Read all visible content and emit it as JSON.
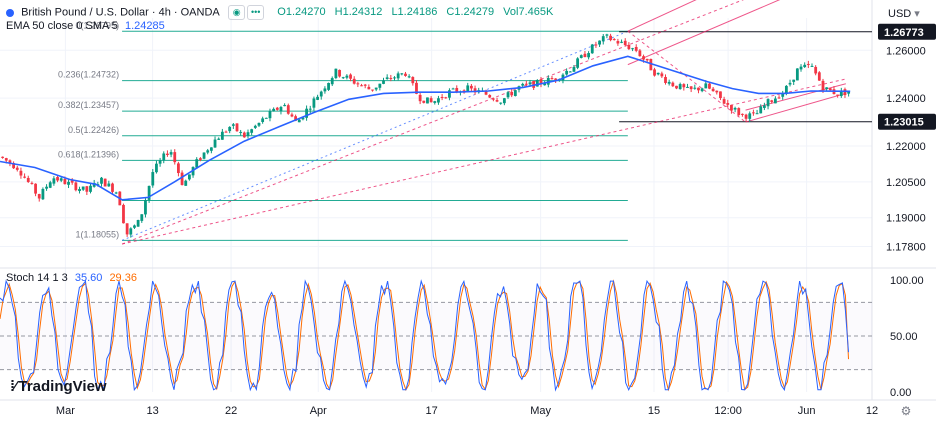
{
  "header": {
    "symbol": "British Pound / U.S. Dollar · 4h · OANDA",
    "open": "O1.24270",
    "high": "H1.24312",
    "low": "L1.24186",
    "close": "C1.24279",
    "volume": "Vol7.465K",
    "ema_label": "EMA 50 close 0 SMA 5",
    "ema_value": "1.24285",
    "currency": "USD",
    "stoch_label": "Stoch 14 1 3",
    "stoch_k": "35.60",
    "stoch_d": "29.36",
    "logo": "TradingView"
  },
  "colors": {
    "up": "#089981",
    "down": "#f23645",
    "ema": "#2962ff",
    "fib": "#22ab94",
    "pitch": "#e91e63",
    "stoch_k": "#2962ff",
    "stoch_d": "#ff6d00",
    "grid": "#f0f3fa",
    "text": "#131722",
    "muted": "#787b86"
  },
  "chart_data": {
    "type": "candlestick",
    "title": "British Pound / U.S. Dollar · 4h · OANDA",
    "price_range": [
      1.1715,
      1.2735
    ],
    "price_ticks": [
      "1.26000",
      "1.24000",
      "1.22000",
      "1.20500",
      "1.19000",
      "1.17800"
    ],
    "price_tick_values": [
      1.26,
      1.24,
      1.22,
      1.205,
      1.19,
      1.178
    ],
    "price_tags": [
      {
        "label": "1.26773",
        "value": 1.26773
      },
      {
        "label": "1.23015",
        "value": 1.23015
      }
    ],
    "x_range": [
      0,
      100
    ],
    "x_ticks": [
      {
        "label": "Mar",
        "x": 7.5
      },
      {
        "label": "13",
        "x": 17.5
      },
      {
        "label": "22",
        "x": 26.5
      },
      {
        "label": "Apr",
        "x": 36.5
      },
      {
        "label": "17",
        "x": 49.5
      },
      {
        "label": "May",
        "x": 62
      },
      {
        "label": "15",
        "x": 75
      },
      {
        "label": "12:00",
        "x": 83.5
      },
      {
        "label": "Jun",
        "x": 92.5
      },
      {
        "label": "12",
        "x": 100
      }
    ],
    "fibonacci": {
      "from": 1.18055,
      "to": 1.26795,
      "x_start": 14,
      "x_end": 72,
      "levels": [
        {
          "label": "0(1.26795)",
          "value": 1.26795
        },
        {
          "label": "0.236(1.24732)",
          "value": 1.24732
        },
        {
          "label": "0.382(1.23457)",
          "value": 1.23457
        },
        {
          "label": "0.5(1.22426)",
          "value": 1.22426
        },
        {
          "label": "0.618(1.21396)",
          "value": 1.21396
        },
        {
          "label": "",
          "value": 1.1972
        },
        {
          "label": "1(1.18055)",
          "value": 1.18055
        }
      ]
    },
    "candle_path": [
      [
        0,
        1.2155
      ],
      [
        2,
        1.211
      ],
      [
        4.5,
        1.1985
      ],
      [
        6,
        1.207
      ],
      [
        8,
        1.204
      ],
      [
        10,
        1.201
      ],
      [
        11.5,
        1.206
      ],
      [
        13.5,
        1.2005
      ],
      [
        14.5,
        1.183
      ],
      [
        16,
        1.1885
      ],
      [
        17.5,
        1.209
      ],
      [
        19.5,
        1.219
      ],
      [
        21,
        1.2035
      ],
      [
        22.5,
        1.213
      ],
      [
        24.5,
        1.222
      ],
      [
        26.5,
        1.2285
      ],
      [
        28,
        1.224
      ],
      [
        30.5,
        1.232
      ],
      [
        32.5,
        1.2375
      ],
      [
        34,
        1.2295
      ],
      [
        36.5,
        1.2415
      ],
      [
        38.5,
        1.251
      ],
      [
        40.5,
        1.247
      ],
      [
        42.5,
        1.2435
      ],
      [
        44.5,
        1.248
      ],
      [
        46.5,
        1.2505
      ],
      [
        48,
        1.2405
      ],
      [
        49.5,
        1.238
      ],
      [
        51.5,
        1.2425
      ],
      [
        53.5,
        1.244
      ],
      [
        55.5,
        1.242
      ],
      [
        57.5,
        1.239
      ],
      [
        59.5,
        1.2445
      ],
      [
        61.5,
        1.246
      ],
      [
        63.5,
        1.248
      ],
      [
        65.5,
        1.2525
      ],
      [
        67.5,
        1.26
      ],
      [
        69.5,
        1.2655
      ],
      [
        71.5,
        1.2625
      ],
      [
        73,
        1.26
      ],
      [
        75,
        1.251
      ],
      [
        77,
        1.246
      ],
      [
        79,
        1.243
      ],
      [
        81,
        1.245
      ],
      [
        83,
        1.2385
      ],
      [
        85,
        1.233
      ],
      [
        86.5,
        1.2325
      ],
      [
        88,
        1.238
      ],
      [
        90,
        1.243
      ],
      [
        91.5,
        1.252
      ],
      [
        93,
        1.2535
      ],
      [
        94.5,
        1.244
      ],
      [
        96,
        1.242
      ],
      [
        97.5,
        1.2428
      ]
    ],
    "ema_path": [
      [
        0,
        1.2135
      ],
      [
        4,
        1.211
      ],
      [
        8,
        1.206
      ],
      [
        11,
        1.204
      ],
      [
        14,
        1.1975
      ],
      [
        17,
        1.1985
      ],
      [
        20,
        1.205
      ],
      [
        24,
        1.214
      ],
      [
        28,
        1.222
      ],
      [
        32,
        1.228
      ],
      [
        36,
        1.234
      ],
      [
        40,
        1.2395
      ],
      [
        44,
        1.242
      ],
      [
        48,
        1.2425
      ],
      [
        52,
        1.2425
      ],
      [
        56,
        1.243
      ],
      [
        60,
        1.2445
      ],
      [
        64,
        1.2475
      ],
      [
        68,
        1.2535
      ],
      [
        72,
        1.2575
      ],
      [
        75,
        1.254
      ],
      [
        78,
        1.2505
      ],
      [
        81,
        1.247
      ],
      [
        84,
        1.244
      ],
      [
        87,
        1.242
      ],
      [
        90,
        1.242
      ],
      [
        93,
        1.243
      ],
      [
        96,
        1.2429
      ],
      [
        97.5,
        1.24285
      ]
    ],
    "pitchfork_lines": [
      {
        "x": [
          14,
          97
        ],
        "y": [
          1.179,
          1.298
        ],
        "style": "dashed"
      },
      {
        "x": [
          14,
          97
        ],
        "y": [
          1.179,
          1.248
        ],
        "style": "dashed"
      },
      {
        "x": [
          72,
          97
        ],
        "y": [
          1.268,
          1.31
        ],
        "style": "solid"
      },
      {
        "x": [
          72,
          97
        ],
        "y": [
          1.254,
          1.293
        ],
        "style": "solid"
      },
      {
        "x": [
          85.5,
          97
        ],
        "y": [
          1.235,
          1.246
        ],
        "style": "solid"
      },
      {
        "x": [
          85.5,
          97
        ],
        "y": [
          1.23,
          1.242
        ],
        "style": "solid"
      },
      {
        "x": [
          72,
          85.5
        ],
        "y": [
          1.268,
          1.23
        ],
        "style": "dashed"
      }
    ],
    "stochastic": {
      "range": [
        0,
        100
      ],
      "ticks": [
        "100.00",
        "50.00",
        "0.00"
      ],
      "tick_values": [
        100,
        50,
        0
      ],
      "bands": [
        80,
        50,
        20
      ],
      "k_last": 35.6,
      "d_last": 29.36
    }
  }
}
